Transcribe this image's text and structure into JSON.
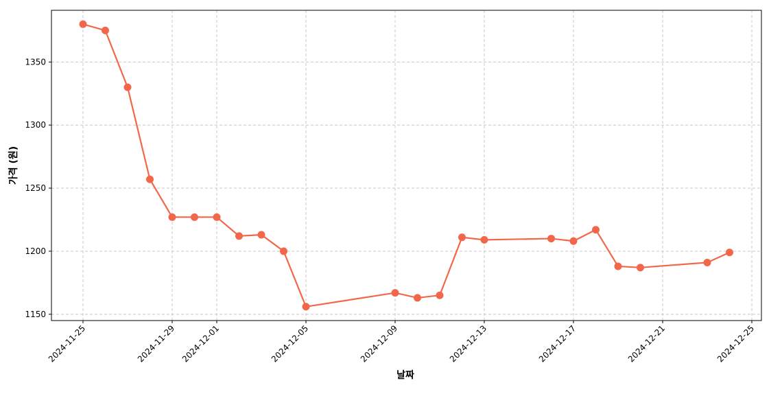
{
  "chart_data": {
    "type": "line",
    "xlabel": "날짜",
    "ylabel": "가격 (원)",
    "x": [
      "2024-11-25",
      "2024-11-26",
      "2024-11-27",
      "2024-11-28",
      "2024-11-29",
      "2024-11-30",
      "2024-12-01",
      "2024-12-02",
      "2024-12-03",
      "2024-12-04",
      "2024-12-05",
      "2024-12-09",
      "2024-12-10",
      "2024-12-11",
      "2024-12-12",
      "2024-12-13",
      "2024-12-16",
      "2024-12-17",
      "2024-12-18",
      "2024-12-19",
      "2024-12-20",
      "2024-12-23",
      "2024-12-24"
    ],
    "series": [
      {
        "color": "#f26749",
        "values": [
          1380,
          1375,
          1330,
          1257,
          1227,
          1227,
          1227,
          1212,
          1213,
          1200,
          1156,
          1167,
          1163,
          1165,
          1211,
          1209,
          1210,
          1208,
          1217,
          1188,
          1187,
          1191,
          1199
        ]
      }
    ],
    "xlim": [
      "2024-11-23T14:02:00Z",
      "2024-12-25T10:20:00Z"
    ],
    "xticks": [
      "2024-11-25",
      "2024-11-29",
      "2024-12-01",
      "2024-12-05",
      "2024-12-09",
      "2024-12-13",
      "2024-12-17",
      "2024-12-21",
      "2024-12-25"
    ],
    "ylim": [
      1145,
      1391
    ],
    "yticks": [
      1150,
      1200,
      1250,
      1300,
      1350
    ],
    "grid": true
  }
}
